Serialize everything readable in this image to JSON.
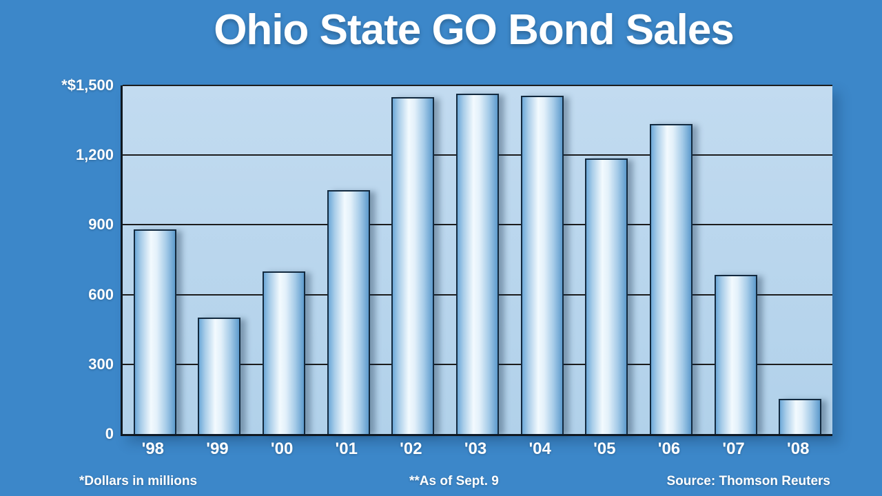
{
  "title": "Ohio State GO Bond Sales",
  "footnotes": {
    "left": "*Dollars in millions",
    "center": "**As of Sept. 9",
    "right": "Source: Thomson Reuters"
  },
  "colors": {
    "page_background": "#3c87c9",
    "plot_background": "#b5d2eb",
    "bar_edge": "#12293e",
    "bar_highlight": "#f3fafe",
    "bar_side": "#5e9bcd",
    "gridline": "#1c1c1c",
    "text": "#ffffff"
  },
  "chart_data": {
    "type": "bar",
    "title": "Ohio State GO Bond Sales",
    "categories": [
      "'98",
      "'99",
      "'00",
      "'01",
      "'02",
      "'03",
      "'04",
      "'05",
      "'06",
      "'07",
      "'08"
    ],
    "values": [
      880,
      500,
      700,
      1050,
      1450,
      1465,
      1455,
      1185,
      1335,
      685,
      150
    ],
    "units": "Dollars in millions",
    "xlabel": "",
    "ylabel": "",
    "ylim": [
      0,
      1500
    ],
    "ytick_interval": 300,
    "ytick_values": [
      0,
      300,
      600,
      900,
      1200,
      1500
    ],
    "ytick_labels": [
      "0",
      "300",
      "600",
      "900",
      "1,200",
      "*$1,500"
    ],
    "grid": true,
    "legend": "none",
    "notes": [
      "*Dollars in millions",
      "**As of Sept. 9"
    ],
    "source": "Source: Thomson Reuters"
  }
}
